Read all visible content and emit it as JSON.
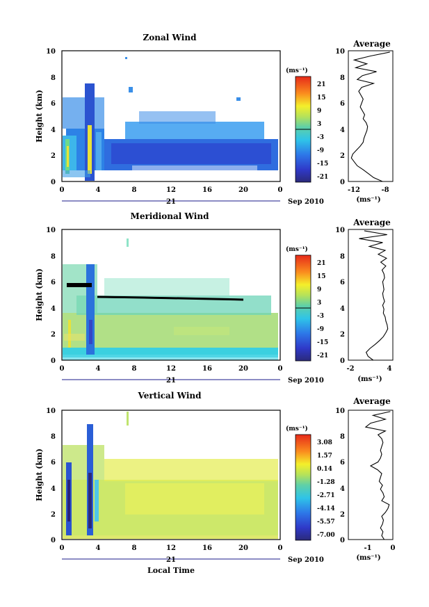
{
  "figure": {
    "date_label": "Sep 2010",
    "date_day": "21",
    "xlabel_bottom": "Local Time"
  },
  "chart_data": [
    {
      "type": "heatmap",
      "title": "Zonal Wind",
      "ylabel": "Height (km)",
      "xlabel": "",
      "x_ticks": [
        "0",
        "4",
        "8",
        "12",
        "16",
        "20",
        "0"
      ],
      "xlim": [
        0,
        24
      ],
      "ylim": [
        0,
        10
      ],
      "y_ticks": [
        "0",
        "2",
        "4",
        "6",
        "8",
        "10"
      ],
      "colorbar": {
        "unit": "(ms⁻¹)",
        "labels": [
          "21",
          "15",
          "9",
          "3",
          "-3",
          "-9",
          "-15",
          "-21"
        ],
        "range": [
          -24,
          24
        ]
      },
      "description_values": {
        "dominant_value": -15,
        "core_height_km": [
          1,
          3
        ]
      },
      "average_profile": {
        "title": "Average",
        "xlabel": "(ms⁻¹)",
        "x_ticks": [
          "-12",
          "-8"
        ],
        "xlim": [
          -13,
          -7
        ],
        "ylim": [
          0,
          10
        ],
        "y_ticks": [
          "0",
          "2",
          "4",
          "6",
          "8",
          "10"
        ],
        "height_km": [
          0.0,
          0.3,
          0.6,
          0.9,
          1.2,
          1.5,
          1.8,
          2.1,
          2.4,
          2.7,
          3.0,
          3.3,
          3.6,
          3.9,
          4.2,
          4.5,
          4.8,
          5.1,
          5.4,
          5.7,
          6.0,
          6.3,
          6.6,
          6.9,
          7.2,
          7.5,
          7.8,
          8.1,
          8.4,
          8.7,
          9.0,
          9.3,
          9.6,
          9.9
        ],
        "value": [
          -8.4,
          -9.6,
          -10.3,
          -11.0,
          -11.8,
          -12.2,
          -12.6,
          -12.4,
          -11.9,
          -11.4,
          -11.0,
          -10.9,
          -10.7,
          -10.5,
          -10.4,
          -10.6,
          -11.0,
          -10.8,
          -11.1,
          -11.4,
          -11.2,
          -11.0,
          -11.3,
          -11.6,
          -11.2,
          -9.6,
          -11.8,
          -11.1,
          -9.2,
          -12.0,
          -10.5,
          -12.2,
          -10.0,
          -7.4
        ]
      }
    },
    {
      "type": "heatmap",
      "title": "Meridional Wind",
      "ylabel": "Height (km)",
      "xlabel": "",
      "x_ticks": [
        "0",
        "4",
        "8",
        "12",
        "16",
        "20",
        "0"
      ],
      "xlim": [
        0,
        24
      ],
      "ylim": [
        0,
        10
      ],
      "y_ticks": [
        "0",
        "2",
        "4",
        "6",
        "8",
        "10"
      ],
      "colorbar": {
        "unit": "(ms⁻¹)",
        "labels": [
          "21",
          "15",
          "9",
          "3",
          "-3",
          "-9",
          "-15",
          "-21"
        ],
        "range": [
          -24,
          24
        ]
      },
      "description_values": {
        "dominant_value": 3,
        "core_height_km": [
          1,
          4
        ]
      },
      "average_profile": {
        "title": "Average",
        "xlabel": "(ms⁻¹)",
        "x_ticks": [
          "-2",
          "4"
        ],
        "xlim": [
          -2.5,
          4.5
        ],
        "ylim": [
          0,
          10
        ],
        "y_ticks": [
          "0",
          "2",
          "4",
          "6",
          "8",
          "10"
        ],
        "height_km": [
          0.0,
          0.3,
          0.6,
          0.9,
          1.2,
          1.5,
          1.8,
          2.1,
          2.4,
          2.7,
          3.0,
          3.3,
          3.6,
          3.9,
          4.2,
          4.5,
          4.8,
          5.1,
          5.4,
          5.7,
          6.0,
          6.3,
          6.6,
          6.9,
          7.2,
          7.5,
          7.8,
          8.1,
          8.4,
          8.7,
          9.0,
          9.3,
          9.6,
          9.9
        ],
        "value": [
          1.4,
          0.6,
          0.3,
          0.9,
          1.7,
          2.4,
          3.0,
          3.4,
          3.7,
          3.6,
          3.4,
          3.3,
          3.0,
          3.1,
          2.9,
          3.2,
          3.0,
          2.9,
          3.1,
          3.0,
          2.9,
          3.2,
          3.1,
          2.8,
          3.4,
          2.6,
          3.5,
          2.2,
          3.3,
          0.8,
          2.9,
          -0.8,
          3.6,
          0.0
        ]
      }
    },
    {
      "type": "heatmap",
      "title": "Vertical Wind",
      "ylabel": "Height (km)",
      "xlabel": "Local Time",
      "x_ticks": [
        "0",
        "4",
        "8",
        "12",
        "16",
        "20",
        "0"
      ],
      "xlim": [
        0,
        24
      ],
      "ylim": [
        0,
        10
      ],
      "y_ticks": [
        "0",
        "2",
        "4",
        "6",
        "8",
        "10"
      ],
      "colorbar": {
        "unit": "(ms⁻¹)",
        "labels": [
          "3.08",
          "1.57",
          "0.14",
          "-1.28",
          "-2.71",
          "-4.14",
          "-5.57",
          "-7.00"
        ],
        "range": [
          -7.71,
          3.79
        ]
      },
      "description_values": {
        "dominant_value": 0.5,
        "core_height_km": [
          0,
          4.5
        ]
      },
      "average_profile": {
        "title": "Average",
        "xlabel": "(ms⁻¹)",
        "x_ticks": [
          "-1",
          "0"
        ],
        "xlim": [
          -1.8,
          0.0
        ],
        "ylim": [
          0,
          10
        ],
        "y_ticks": [
          "0",
          "2",
          "4",
          "6",
          "8",
          "10"
        ],
        "height_km": [
          0.0,
          0.3,
          0.6,
          0.9,
          1.2,
          1.5,
          1.8,
          2.1,
          2.4,
          2.7,
          3.0,
          3.3,
          3.6,
          3.9,
          4.2,
          4.5,
          4.8,
          5.1,
          5.4,
          5.7,
          6.0,
          6.3,
          6.6,
          6.9,
          7.2,
          7.5,
          7.8,
          8.1,
          8.4,
          8.7,
          9.0,
          9.3,
          9.6,
          9.9
        ],
        "value": [
          -0.35,
          -0.45,
          -0.4,
          -0.5,
          -0.42,
          -0.38,
          -0.45,
          -0.3,
          -0.2,
          -0.15,
          -0.45,
          -0.35,
          -0.4,
          -0.5,
          -0.42,
          -0.55,
          -0.5,
          -0.45,
          -0.62,
          -0.9,
          -0.6,
          -0.5,
          -0.45,
          -0.5,
          -0.45,
          -0.4,
          -0.45,
          -0.6,
          -0.3,
          -1.1,
          -0.9,
          -0.3,
          -0.8,
          -0.1
        ]
      }
    }
  ]
}
